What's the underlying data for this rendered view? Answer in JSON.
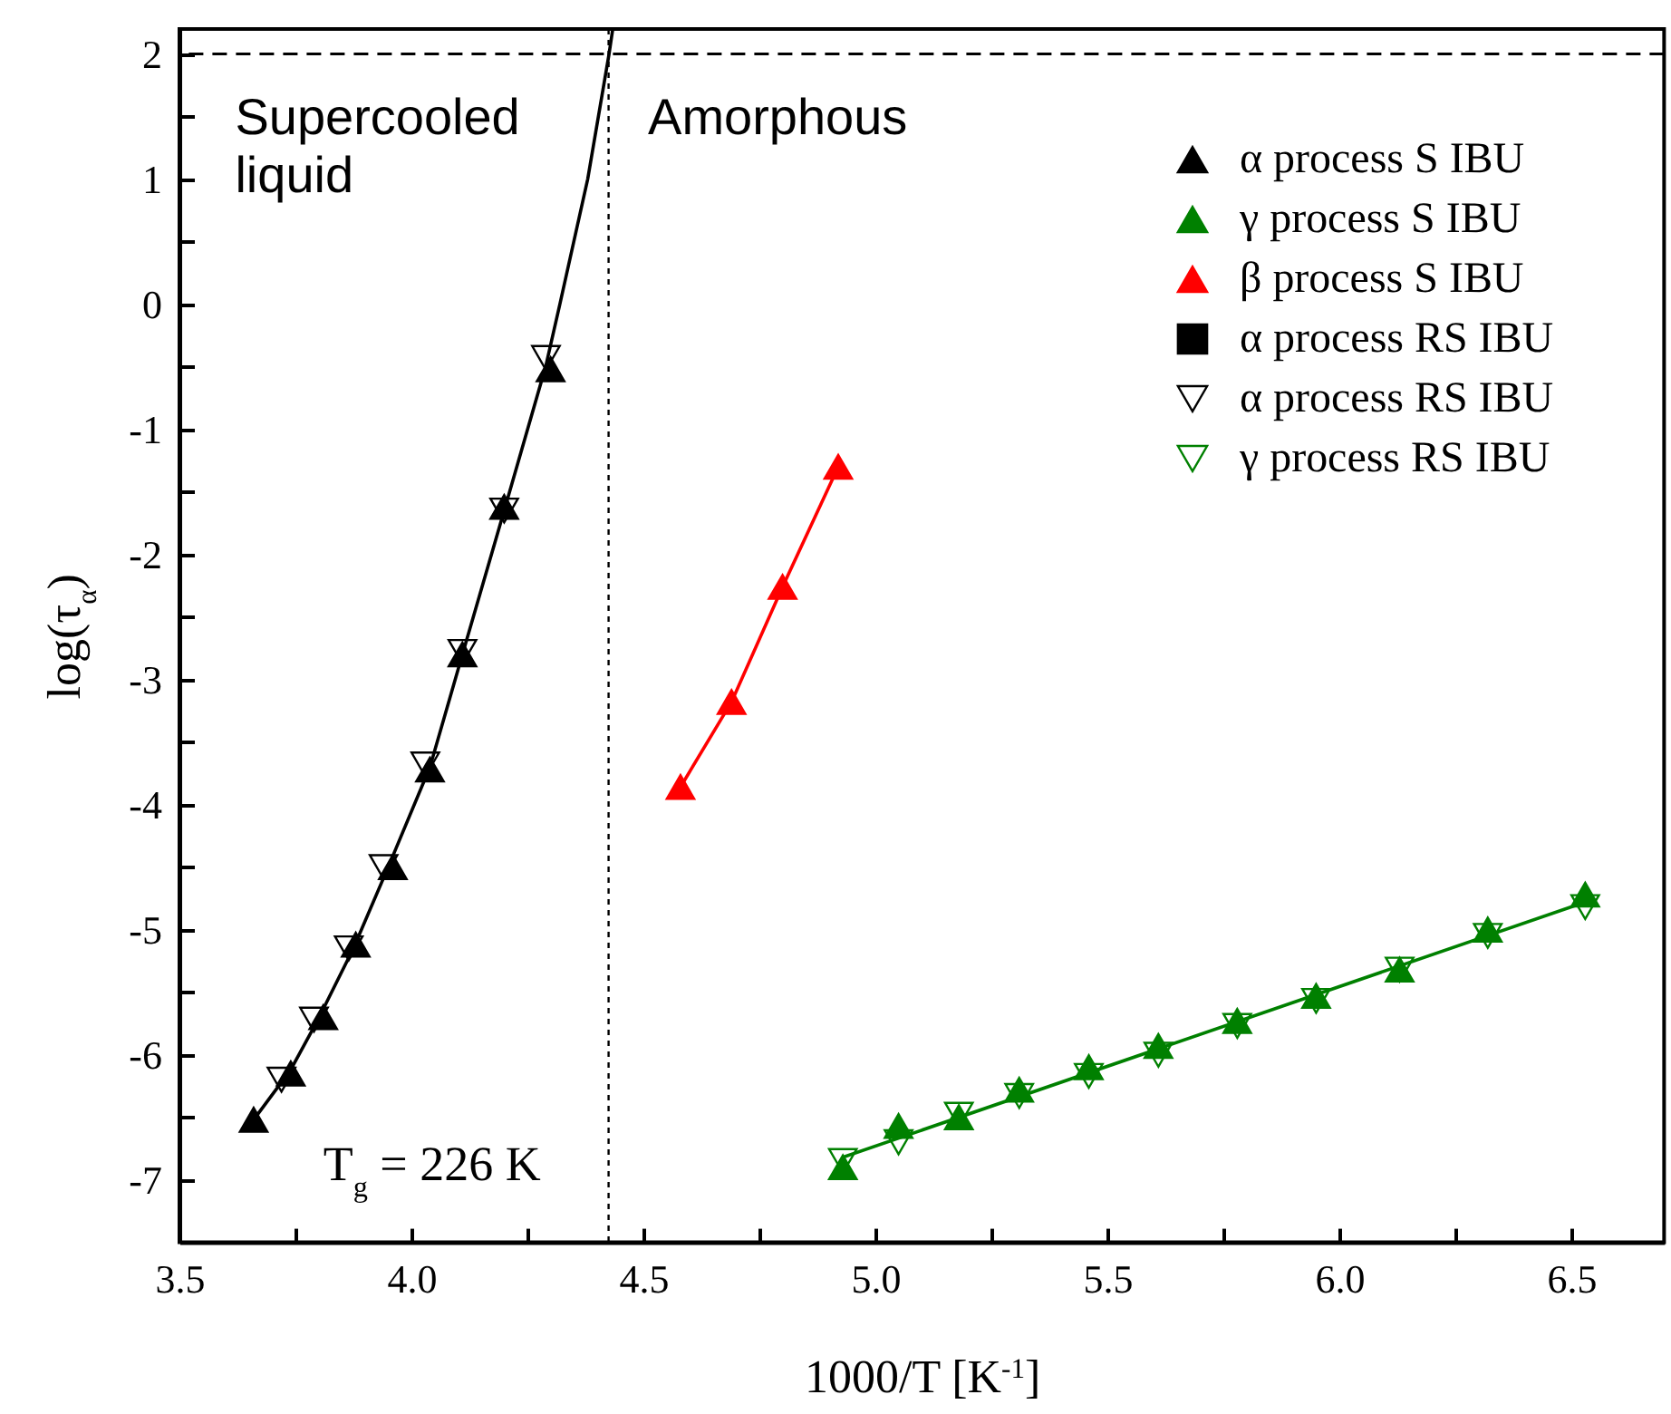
{
  "chart_data": {
    "type": "scatter",
    "xlabel": "1000/T [K$^{-1}$]",
    "ylabel": "log(τ$_{α}$)",
    "xlim": [
      3.5,
      6.7
    ],
    "ylim": [
      -7.5,
      2.2
    ],
    "xticks": [
      3.5,
      {
        "value": 3.75,
        "label": null
      },
      {
        "value": 4,
        "label": "4.0"
      },
      {
        "value": 4.25,
        "label": null
      },
      4.5,
      {
        "value": 4.75,
        "label": null
      },
      {
        "value": 5,
        "label": "5.0"
      },
      {
        "value": 5.25,
        "label": null
      },
      5.5,
      {
        "value": 5.75,
        "label": null
      },
      {
        "value": 6,
        "label": "6.0"
      },
      {
        "value": 6.25,
        "label": null
      },
      6.5
    ],
    "yticks": [
      -7,
      {
        "value": -6.5,
        "label": null
      },
      -6,
      {
        "value": -5.5,
        "label": null
      },
      -5,
      {
        "value": -4.5,
        "label": null
      },
      -4,
      {
        "value": -3.5,
        "label": null
      },
      -3,
      {
        "value": -2.5,
        "label": null
      },
      -2,
      {
        "value": -1.5,
        "label": null
      },
      -1,
      {
        "value": -0.5,
        "label": null
      },
      0,
      {
        "value": 0.5,
        "label": null
      },
      1,
      {
        "value": 1.5,
        "label": null
      },
      2
    ],
    "grid": false,
    "legend": "top right",
    "series": [
      {
        "name": "α process S IBU",
        "color": "#000000",
        "marker": "triangle",
        "x": [
          3.66,
          3.74,
          3.81,
          3.88,
          3.96,
          4.04,
          4.11,
          4.2,
          4.3
        ],
        "values": [
          -6.52,
          -6.15,
          -5.7,
          -5.12,
          -4.5,
          -3.72,
          -2.8,
          -1.62,
          -0.52
        ]
      },
      {
        "name": "γ process S IBU",
        "color": "#008000",
        "marker": "triangle",
        "x": [
          4.93,
          5.05,
          5.18,
          5.31,
          5.46,
          5.61,
          5.78,
          5.95,
          6.13,
          6.32,
          6.53
        ],
        "values": [
          -6.9,
          -6.57,
          -6.5,
          -6.28,
          -6.1,
          -5.93,
          -5.73,
          -5.53,
          -5.32,
          -5.0,
          -4.72
        ]
      },
      {
        "name": "β process S IBU",
        "type": "line",
        "color": "#ff0000",
        "marker": "triangle",
        "x": [
          4.58,
          4.69,
          4.8,
          4.92
        ],
        "values": [
          -3.86,
          -3.18,
          -2.26,
          -1.3
        ]
      },
      {
        "name": "α process RS IBU",
        "color": "#000000",
        "marker": "square"
      },
      {
        "name": "α process RS IBU",
        "color": "#000000",
        "marker": "triangle-down",
        "x": [
          3.72,
          3.79,
          3.865,
          3.94,
          4.03,
          4.11,
          4.2,
          4.29
        ],
        "values": [
          -6.2,
          -5.72,
          -5.15,
          -4.5,
          -3.68,
          -2.78,
          -1.65,
          -0.43
        ]
      },
      {
        "name": "γ process RS IBU",
        "color": "#008000",
        "marker": "triangle-down",
        "x": [
          4.93,
          5.05,
          5.18,
          5.31,
          5.46,
          5.61,
          5.78,
          5.95,
          6.13,
          6.32,
          6.53
        ],
        "values": [
          -6.85,
          -6.7,
          -6.48,
          -6.33,
          -6.17,
          -6.0,
          -5.77,
          -5.57,
          -5.32,
          -5.05,
          -4.82
        ]
      },
      {
        "type": "line",
        "color": "#000000",
        "marker": "none",
        "x": [
          3.66,
          3.74,
          3.8,
          3.875,
          3.95,
          4.04,
          4.11,
          4.2,
          4.29,
          4.32,
          4.38,
          4.426,
          4.434
        ],
        "values": [
          -6.52,
          -6.12,
          -5.71,
          -5.15,
          -4.5,
          -3.7,
          -2.8,
          -1.65,
          -0.49,
          0,
          1,
          2,
          2.2
        ]
      },
      {
        "type": "line",
        "color": "#008000",
        "marker": "none",
        "x": [
          4.93,
          6.53
        ],
        "values": [
          -6.82,
          -4.78
        ]
      }
    ],
    "ref_lines": [
      {
        "axis": "y",
        "value": 2,
        "line_style": "dashed"
      },
      {
        "axis": "x",
        "value": 4.425,
        "line_style": "dotted"
      }
    ],
    "annotations": [
      "Supercooled\nliquid",
      "Amorphous",
      "T$_{g}$ = 226 K"
    ]
  }
}
